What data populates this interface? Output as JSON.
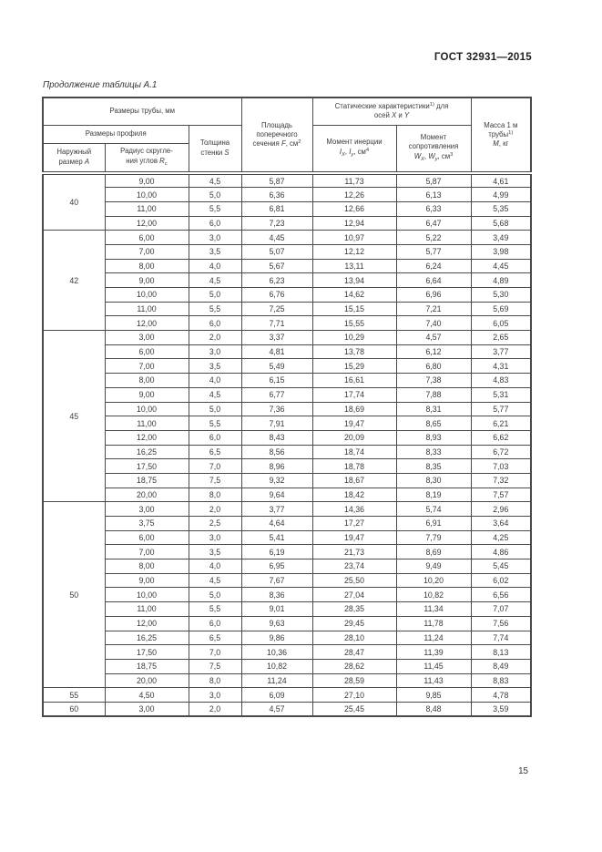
{
  "page": {
    "standard_ref": "ГОСТ 32931—2015",
    "table_caption": "Продолжение таблицы А.1",
    "page_number": "15"
  },
  "table": {
    "header": {
      "pipe_dims": "Размеры трубы, мм",
      "profile_dims": "Размеры профиля",
      "outer_size": {
        "line1": "Наружный",
        "line2_pre": "размер ",
        "var": "А"
      },
      "corner_radius": {
        "line1": "Радиус скругле-",
        "line2_pre": "ния углов ",
        "var": "R",
        "sub": "с"
      },
      "wall_thickness": {
        "line1": "Толщина",
        "line2_pre": "стенки ",
        "var": "S"
      },
      "cross_section": {
        "line1": "Площадь",
        "line2": "поперечного",
        "line3_pre": "сечения ",
        "var": "F",
        "unit": ", см",
        "sup": "2"
      },
      "static_chars": {
        "pre": "Статические характеристики",
        "sup": "1)",
        "post": " для",
        "line2_pre": "осей ",
        "var_x": "X",
        "mid": " и ",
        "var_y": "Y"
      },
      "inertia": {
        "line1": "Момент инерции",
        "var1": "I",
        "sub1": "X",
        "sep": ", ",
        "var2": "I",
        "sub2": "y",
        "unit": ", см",
        "sup": "4"
      },
      "resistance": {
        "line1": "Момент",
        "line2": "сопротивления",
        "var1": "W",
        "sub1": "X",
        "sep": ", ",
        "var2": "W",
        "sub2": "y",
        "unit": ", см",
        "sup": "3"
      },
      "mass": {
        "line1": "Масса 1 м",
        "line2_pre": "трубы",
        "sup": "1)",
        "var": "М",
        "post": ", кг"
      }
    },
    "groups": [
      {
        "size": "40",
        "rows": [
          [
            "9,00",
            "4,5",
            "5,87",
            "11,73",
            "5,87",
            "4,61"
          ],
          [
            "10,00",
            "5,0",
            "6,36",
            "12,26",
            "6,13",
            "4,99"
          ],
          [
            "11,00",
            "5,5",
            "6,81",
            "12,66",
            "6,33",
            "5,35"
          ],
          [
            "12,00",
            "6,0",
            "7,23",
            "12,94",
            "6,47",
            "5,68"
          ]
        ]
      },
      {
        "size": "42",
        "rows": [
          [
            "6,00",
            "3,0",
            "4,45",
            "10,97",
            "5,22",
            "3,49"
          ],
          [
            "7,00",
            "3,5",
            "5,07",
            "12,12",
            "5,77",
            "3,98"
          ],
          [
            "8,00",
            "4,0",
            "5,67",
            "13,11",
            "6,24",
            "4,45"
          ],
          [
            "9,00",
            "4,5",
            "6,23",
            "13,94",
            "6,64",
            "4,89"
          ],
          [
            "10,00",
            "5,0",
            "6,76",
            "14,62",
            "6,96",
            "5,30"
          ],
          [
            "11,00",
            "5,5",
            "7,25",
            "15,15",
            "7,21",
            "5,69"
          ],
          [
            "12,00",
            "6,0",
            "7,71",
            "15,55",
            "7,40",
            "6,05"
          ]
        ]
      },
      {
        "size": "45",
        "rows": [
          [
            "3,00",
            "2,0",
            "3,37",
            "10,29",
            "4,57",
            "2,65"
          ],
          [
            "6,00",
            "3,0",
            "4,81",
            "13,78",
            "6,12",
            "3,77"
          ],
          [
            "7,00",
            "3,5",
            "5,49",
            "15,29",
            "6,80",
            "4,31"
          ],
          [
            "8,00",
            "4,0",
            "6,15",
            "16,61",
            "7,38",
            "4,83"
          ],
          [
            "9,00",
            "4,5",
            "6,77",
            "17,74",
            "7,88",
            "5,31"
          ],
          [
            "10,00",
            "5,0",
            "7,36",
            "18,69",
            "8,31",
            "5,77"
          ],
          [
            "11,00",
            "5,5",
            "7,91",
            "19,47",
            "8,65",
            "6,21"
          ],
          [
            "12,00",
            "6,0",
            "8,43",
            "20,09",
            "8,93",
            "6,62"
          ],
          [
            "16,25",
            "6,5",
            "8,56",
            "18,74",
            "8,33",
            "6,72"
          ],
          [
            "17,50",
            "7,0",
            "8,96",
            "18,78",
            "8,35",
            "7,03"
          ],
          [
            "18,75",
            "7,5",
            "9,32",
            "18,67",
            "8,30",
            "7,32"
          ],
          [
            "20,00",
            "8,0",
            "9,64",
            "18,42",
            "8,19",
            "7,57"
          ]
        ]
      },
      {
        "size": "50",
        "rows": [
          [
            "3,00",
            "2,0",
            "3,77",
            "14,36",
            "5,74",
            "2,96"
          ],
          [
            "3,75",
            "2,5",
            "4,64",
            "17,27",
            "6,91",
            "3,64"
          ],
          [
            "6,00",
            "3,0",
            "5,41",
            "19,47",
            "7,79",
            "4,25"
          ],
          [
            "7,00",
            "3,5",
            "6,19",
            "21,73",
            "8,69",
            "4,86"
          ],
          [
            "8,00",
            "4,0",
            "6,95",
            "23,74",
            "9,49",
            "5,45"
          ],
          [
            "9,00",
            "4,5",
            "7,67",
            "25,50",
            "10,20",
            "6,02"
          ],
          [
            "10,00",
            "5,0",
            "8,36",
            "27,04",
            "10,82",
            "6,56"
          ],
          [
            "11,00",
            "5,5",
            "9,01",
            "28,35",
            "11,34",
            "7,07"
          ],
          [
            "12,00",
            "6,0",
            "9,63",
            "29,45",
            "11,78",
            "7,56"
          ],
          [
            "16,25",
            "6,5",
            "9,86",
            "28,10",
            "11,24",
            "7,74"
          ],
          [
            "17,50",
            "7,0",
            "10,36",
            "28,47",
            "11,39",
            "8,13"
          ],
          [
            "18,75",
            "7,5",
            "10,82",
            "28,62",
            "11,45",
            "8,49"
          ],
          [
            "20,00",
            "8,0",
            "11,24",
            "28,59",
            "11,43",
            "8,83"
          ]
        ]
      },
      {
        "size": "55",
        "rows": [
          [
            "4,50",
            "3,0",
            "6,09",
            "27,10",
            "9,85",
            "4,78"
          ]
        ]
      },
      {
        "size": "60",
        "rows": [
          [
            "3,00",
            "2,0",
            "4,57",
            "25,45",
            "8,48",
            "3,59"
          ]
        ]
      }
    ]
  }
}
